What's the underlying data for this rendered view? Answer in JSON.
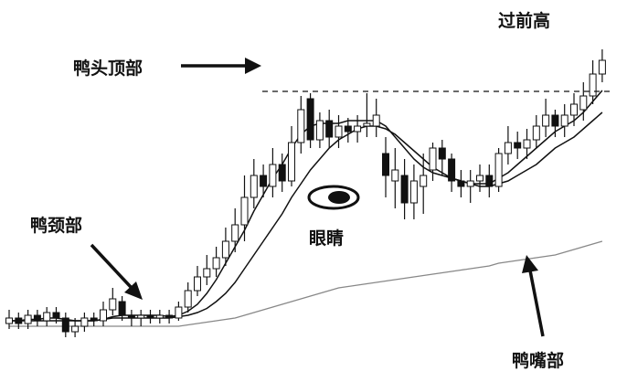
{
  "labels": {
    "head": "鸭头顶部",
    "neck": "鸭颈部",
    "eye": "眼睛",
    "beak": "鸭嘴部",
    "prev_high": "过前高"
  },
  "colors": {
    "ink": "#111111",
    "background": "#ffffff",
    "long_ma": "#888888"
  },
  "chart_data": {
    "type": "candlestick",
    "title": "",
    "grid": false,
    "axes_visible": false,
    "ylim": [
      0,
      100
    ],
    "prev_high_level": 91,
    "candles": [
      {
        "o": 8,
        "c": 10,
        "h": 13,
        "l": 6
      },
      {
        "o": 10,
        "c": 8,
        "h": 12,
        "l": 6
      },
      {
        "o": 8,
        "c": 11,
        "h": 13,
        "l": 6
      },
      {
        "o": 11,
        "c": 9,
        "h": 13,
        "l": 7
      },
      {
        "o": 9,
        "c": 12,
        "h": 14,
        "l": 7
      },
      {
        "o": 12,
        "c": 10,
        "h": 14,
        "l": 8
      },
      {
        "o": 10,
        "c": 5,
        "h": 12,
        "l": 3
      },
      {
        "o": 5,
        "c": 7,
        "h": 10,
        "l": 3
      },
      {
        "o": 7,
        "c": 10,
        "h": 12,
        "l": 5
      },
      {
        "o": 10,
        "c": 9,
        "h": 12,
        "l": 7
      },
      {
        "o": 9,
        "c": 13,
        "h": 16,
        "l": 7
      },
      {
        "o": 13,
        "c": 17,
        "h": 21,
        "l": 11
      },
      {
        "o": 16,
        "c": 11,
        "h": 18,
        "l": 9
      },
      {
        "o": 11,
        "c": 10,
        "h": 13,
        "l": 7
      },
      {
        "o": 10,
        "c": 11,
        "h": 13,
        "l": 7
      },
      {
        "o": 11,
        "c": 10,
        "h": 13,
        "l": 8
      },
      {
        "o": 10,
        "c": 11,
        "h": 13,
        "l": 8
      },
      {
        "o": 11,
        "c": 10,
        "h": 13,
        "l": 8
      },
      {
        "o": 10,
        "c": 14,
        "h": 16,
        "l": 9
      },
      {
        "o": 14,
        "c": 20,
        "h": 23,
        "l": 12
      },
      {
        "o": 20,
        "c": 25,
        "h": 29,
        "l": 18
      },
      {
        "o": 25,
        "c": 28,
        "h": 33,
        "l": 22
      },
      {
        "o": 28,
        "c": 32,
        "h": 36,
        "l": 25
      },
      {
        "o": 32,
        "c": 38,
        "h": 43,
        "l": 29
      },
      {
        "o": 38,
        "c": 44,
        "h": 50,
        "l": 34
      },
      {
        "o": 44,
        "c": 54,
        "h": 62,
        "l": 38
      },
      {
        "o": 54,
        "c": 62,
        "h": 68,
        "l": 50
      },
      {
        "o": 62,
        "c": 58,
        "h": 66,
        "l": 54
      },
      {
        "o": 58,
        "c": 66,
        "h": 72,
        "l": 54
      },
      {
        "o": 66,
        "c": 60,
        "h": 70,
        "l": 56
      },
      {
        "o": 60,
        "c": 74,
        "h": 80,
        "l": 58
      },
      {
        "o": 74,
        "c": 86,
        "h": 91,
        "l": 70
      },
      {
        "o": 90,
        "c": 75,
        "h": 92,
        "l": 72
      },
      {
        "o": 75,
        "c": 82,
        "h": 85,
        "l": 72
      },
      {
        "o": 82,
        "c": 76,
        "h": 86,
        "l": 72
      },
      {
        "o": 76,
        "c": 80,
        "h": 84,
        "l": 72
      },
      {
        "o": 80,
        "c": 78,
        "h": 83,
        "l": 74
      },
      {
        "o": 78,
        "c": 80,
        "h": 84,
        "l": 74
      },
      {
        "o": 80,
        "c": 81,
        "h": 92,
        "l": 76
      },
      {
        "o": 80,
        "c": 84,
        "h": 90,
        "l": 76
      },
      {
        "o": 70,
        "c": 62,
        "h": 76,
        "l": 54
      },
      {
        "o": 60,
        "c": 64,
        "h": 72,
        "l": 50
      },
      {
        "o": 62,
        "c": 52,
        "h": 68,
        "l": 46
      },
      {
        "o": 52,
        "c": 60,
        "h": 66,
        "l": 46
      },
      {
        "o": 58,
        "c": 62,
        "h": 70,
        "l": 48
      },
      {
        "o": 64,
        "c": 72,
        "h": 74,
        "l": 60
      },
      {
        "o": 72,
        "c": 68,
        "h": 75,
        "l": 62
      },
      {
        "o": 68,
        "c": 60,
        "h": 70,
        "l": 56
      },
      {
        "o": 60,
        "c": 58,
        "h": 64,
        "l": 54
      },
      {
        "o": 58,
        "c": 60,
        "h": 64,
        "l": 52
      },
      {
        "o": 60,
        "c": 62,
        "h": 66,
        "l": 56
      },
      {
        "o": 62,
        "c": 58,
        "h": 66,
        "l": 54
      },
      {
        "o": 58,
        "c": 70,
        "h": 72,
        "l": 56
      },
      {
        "o": 70,
        "c": 74,
        "h": 80,
        "l": 66
      },
      {
        "o": 74,
        "c": 72,
        "h": 78,
        "l": 68
      },
      {
        "o": 72,
        "c": 75,
        "h": 79,
        "l": 68
      },
      {
        "o": 75,
        "c": 80,
        "h": 84,
        "l": 72
      },
      {
        "o": 80,
        "c": 84,
        "h": 90,
        "l": 76
      },
      {
        "o": 84,
        "c": 80,
        "h": 86,
        "l": 76
      },
      {
        "o": 80,
        "c": 84,
        "h": 88,
        "l": 76
      },
      {
        "o": 84,
        "c": 88,
        "h": 92,
        "l": 80
      },
      {
        "o": 86,
        "c": 91,
        "h": 96,
        "l": 82
      },
      {
        "o": 91,
        "c": 99,
        "h": 104,
        "l": 88
      },
      {
        "o": 99,
        "c": 104,
        "h": 108,
        "l": 96
      }
    ],
    "ma_short": [
      9,
      9,
      9.5,
      9.5,
      10,
      10,
      9.5,
      9,
      9,
      9,
      9.5,
      10.5,
      11,
      11,
      11,
      11,
      11,
      10.5,
      11,
      12.5,
      15,
      19,
      24,
      30,
      36,
      42,
      49,
      55,
      61,
      66,
      72,
      77,
      80,
      81,
      81,
      81,
      82,
      82,
      82,
      82,
      80,
      76,
      72,
      68,
      65,
      63,
      62,
      61,
      60,
      59,
      59,
      59,
      61,
      63,
      66,
      69,
      72,
      75,
      78,
      80,
      82,
      85,
      89,
      93
    ],
    "ma_mid": [
      9,
      9,
      9,
      9,
      9,
      9,
      9,
      9,
      9,
      9,
      9.5,
      10,
      10,
      10,
      10,
      10,
      10,
      10,
      10.5,
      11,
      12,
      13.5,
      16,
      19,
      23,
      28,
      33,
      38,
      43,
      48,
      54,
      59,
      64,
      68,
      72,
      75,
      77,
      79,
      80,
      80,
      79,
      77,
      74,
      71,
      68,
      65,
      63,
      61,
      60,
      59,
      58,
      58,
      59,
      60,
      62,
      64,
      66,
      69,
      72,
      74,
      76,
      79,
      82,
      85
    ],
    "ma_long": [
      7,
      7,
      7,
      7,
      7,
      7,
      7,
      7,
      7,
      7,
      7,
      7,
      7,
      7,
      7,
      7,
      7,
      7,
      7,
      7.5,
      8,
      8.5,
      9,
      9.5,
      10,
      11,
      12,
      13,
      14,
      15,
      16,
      17,
      18,
      19,
      20,
      21,
      21.5,
      22,
      22.5,
      23,
      23.5,
      24,
      24.5,
      25,
      25.5,
      26,
      26.5,
      27,
      27.5,
      28,
      28.5,
      29,
      30,
      30.5,
      31,
      31.5,
      32,
      32.5,
      33,
      34,
      35,
      36,
      37,
      38
    ]
  }
}
